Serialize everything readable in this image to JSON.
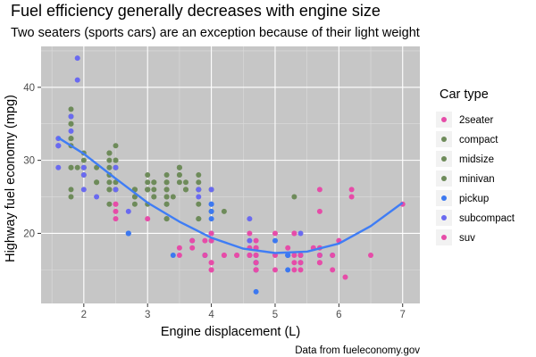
{
  "chart_data": {
    "type": "scatter",
    "title": "Fuel efficiency generally decreases with engine size",
    "subtitle": "Two seaters (sports cars) are an exception because of their light weight",
    "xlabel": "Engine displacement (L)",
    "ylabel": "Highway fuel economy (mpg)",
    "caption": "Data from fueleconomy.gov",
    "xlim": [
      1.33,
      7.27
    ],
    "ylim": [
      10.4,
      45.6
    ],
    "xticks": [
      2,
      3,
      4,
      5,
      6,
      7
    ],
    "yticks": [
      20,
      30,
      40
    ],
    "grid": true,
    "legend": {
      "title": "Car type",
      "position": "right"
    },
    "series": [
      {
        "name": "2seater",
        "color": "#E64CA8",
        "points": [
          [
            5.7,
            26
          ],
          [
            5.7,
            23
          ],
          [
            6.2,
            26
          ],
          [
            6.2,
            25
          ],
          [
            7.0,
            24
          ]
        ]
      },
      {
        "name": "compact",
        "color": "#6E8B5A",
        "points": [
          [
            1.8,
            29
          ],
          [
            1.8,
            29
          ],
          [
            2.0,
            31
          ],
          [
            2.0,
            30
          ],
          [
            2.8,
            26
          ],
          [
            2.8,
            26
          ],
          [
            3.1,
            27
          ],
          [
            1.8,
            26
          ],
          [
            1.8,
            25
          ],
          [
            2.0,
            28
          ],
          [
            2.0,
            29
          ],
          [
            2.8,
            25
          ],
          [
            3.1,
            25
          ],
          [
            2.2,
            27
          ],
          [
            2.2,
            29
          ],
          [
            2.4,
            31
          ],
          [
            2.4,
            31
          ],
          [
            3.0,
            26
          ],
          [
            3.0,
            26
          ],
          [
            3.3,
            27
          ],
          [
            1.8,
            33
          ],
          [
            1.8,
            37
          ],
          [
            1.8,
            35
          ],
          [
            1.9,
            29
          ],
          [
            2.0,
            29
          ],
          [
            2.5,
            32
          ],
          [
            2.5,
            27
          ],
          [
            2.5,
            26
          ],
          [
            2.5,
            30
          ],
          [
            2.8,
            26
          ],
          [
            2.8,
            24
          ],
          [
            3.3,
            25
          ],
          [
            2.4,
            27
          ],
          [
            2.4,
            26
          ],
          [
            1.8,
            36
          ],
          [
            1.8,
            35
          ],
          [
            2.4,
            28
          ],
          [
            2.4,
            28
          ]
        ]
      },
      {
        "name": "midsize",
        "color": "#6E8B5A",
        "points": [
          [
            2.8,
            25
          ],
          [
            3.1,
            25
          ],
          [
            4.2,
            23
          ],
          [
            3.8,
            26
          ],
          [
            3.8,
            26
          ],
          [
            3.1,
            27
          ],
          [
            3.5,
            29
          ],
          [
            3.5,
            28
          ],
          [
            3.0,
            26
          ],
          [
            3.0,
            26
          ],
          [
            2.4,
            26
          ],
          [
            2.4,
            31
          ],
          [
            3.1,
            26
          ],
          [
            3.5,
            29
          ],
          [
            3.6,
            27
          ],
          [
            3.6,
            26
          ],
          [
            3.3,
            26
          ],
          [
            3.3,
            25
          ],
          [
            3.4,
            25
          ],
          [
            3.6,
            26
          ],
          [
            2.5,
            29
          ],
          [
            2.5,
            26
          ],
          [
            3.0,
            26
          ],
          [
            3.3,
            27
          ],
          [
            3.3,
            26
          ],
          [
            3.8,
            27
          ],
          [
            3.8,
            28
          ],
          [
            3.5,
            27
          ],
          [
            3.5,
            28
          ],
          [
            2.4,
            29
          ],
          [
            2.4,
            30
          ],
          [
            3.3,
            28
          ],
          [
            2.2,
            27
          ],
          [
            2.5,
            29
          ],
          [
            2.5,
            30
          ],
          [
            3.0,
            28
          ],
          [
            3.0,
            27
          ],
          [
            3.5,
            29
          ],
          [
            1.8,
            33
          ],
          [
            1.8,
            32
          ],
          [
            2.8,
            26
          ],
          [
            4.0,
            26
          ],
          [
            5.3,
            25
          ]
        ]
      },
      {
        "name": "minivan",
        "color": "#6E8B5A",
        "points": [
          [
            2.4,
            24
          ],
          [
            3.0,
            24
          ],
          [
            3.3,
            22
          ],
          [
            3.3,
            22
          ],
          [
            3.3,
            24
          ],
          [
            3.8,
            24
          ],
          [
            3.8,
            22
          ],
          [
            4.0,
            23
          ],
          [
            3.3,
            24
          ],
          [
            3.8,
            22
          ]
        ]
      },
      {
        "name": "pickup",
        "color": "#3C78F0",
        "points": [
          [
            2.7,
            20
          ],
          [
            2.7,
            20
          ],
          [
            3.9,
            17
          ],
          [
            3.9,
            17
          ],
          [
            4.7,
            15
          ],
          [
            4.7,
            17
          ],
          [
            5.2,
            15
          ],
          [
            5.2,
            17
          ],
          [
            5.7,
            17
          ],
          [
            5.9,
            17
          ],
          [
            4.7,
            16
          ],
          [
            4.7,
            12
          ],
          [
            5.2,
            17
          ],
          [
            3.7,
            19
          ],
          [
            4.7,
            16
          ],
          [
            5.4,
            17
          ],
          [
            4.0,
            19
          ],
          [
            4.0,
            20
          ],
          [
            4.6,
            17
          ],
          [
            5.4,
            16
          ],
          [
            5.4,
            17
          ],
          [
            2.7,
            20
          ],
          [
            3.4,
            17
          ],
          [
            4.0,
            22
          ],
          [
            4.0,
            24
          ],
          [
            4.0,
            23
          ],
          [
            4.0,
            24
          ],
          [
            4.7,
            16
          ],
          [
            4.7,
            15
          ],
          [
            5.0,
            19
          ],
          [
            5.2,
            17
          ],
          [
            5.7,
            17
          ]
        ]
      },
      {
        "name": "subcompact",
        "color": "#6A6AF0",
        "points": [
          [
            1.6,
            32
          ],
          [
            1.6,
            33
          ],
          [
            1.6,
            32
          ],
          [
            1.6,
            29
          ],
          [
            1.6,
            32
          ],
          [
            1.8,
            34
          ],
          [
            1.8,
            36
          ],
          [
            1.9,
            44
          ],
          [
            1.9,
            41
          ],
          [
            2.0,
            29
          ],
          [
            2.0,
            26
          ],
          [
            2.0,
            28
          ],
          [
            2.5,
            29
          ],
          [
            2.5,
            26
          ],
          [
            3.8,
            26
          ],
          [
            3.8,
            25
          ],
          [
            4.6,
            22
          ],
          [
            5.4,
            20
          ],
          [
            4.0,
            26
          ],
          [
            4.6,
            19
          ],
          [
            2.2,
            25
          ],
          [
            2.7,
            23
          ]
        ]
      },
      {
        "name": "suv",
        "color": "#E64CA8",
        "points": [
          [
            5.3,
            20
          ],
          [
            5.3,
            15
          ],
          [
            5.3,
            20
          ],
          [
            5.7,
            17
          ],
          [
            6.5,
            17
          ],
          [
            4.7,
            17
          ],
          [
            4.7,
            19
          ],
          [
            4.7,
            18
          ],
          [
            5.2,
            18
          ],
          [
            3.7,
            19
          ],
          [
            4.7,
            18
          ],
          [
            4.7,
            18
          ],
          [
            5.7,
            16
          ],
          [
            4.7,
            17
          ],
          [
            4.2,
            17
          ],
          [
            4.4,
            17
          ],
          [
            4.6,
            18
          ],
          [
            5.4,
            17
          ],
          [
            4.0,
            19
          ],
          [
            4.6,
            20
          ],
          [
            5.0,
            17
          ],
          [
            6.1,
            14
          ],
          [
            4.0,
            16
          ],
          [
            4.2,
            17
          ],
          [
            4.6,
            17
          ],
          [
            5.0,
            15
          ],
          [
            4.0,
            15
          ],
          [
            4.6,
            17
          ],
          [
            3.9,
            19
          ],
          [
            3.5,
            17
          ],
          [
            3.5,
            18
          ],
          [
            4.0,
            20
          ],
          [
            5.0,
            20
          ],
          [
            5.3,
            16
          ],
          [
            5.9,
            17
          ],
          [
            5.9,
            15
          ],
          [
            6.0,
            19
          ],
          [
            3.0,
            22
          ],
          [
            2.5,
            24
          ],
          [
            2.5,
            23
          ],
          [
            4.0,
            15
          ],
          [
            3.7,
            18
          ],
          [
            5.7,
            18
          ],
          [
            4.7,
            15
          ],
          [
            5.4,
            15
          ],
          [
            4.7,
            16
          ],
          [
            5.3,
            17
          ],
          [
            5.7,
            16
          ],
          [
            2.5,
            22
          ],
          [
            2.5,
            24
          ],
          [
            4.0,
            16
          ],
          [
            4.7,
            15
          ],
          [
            3.9,
            17
          ],
          [
            4.4,
            17
          ],
          [
            5.4,
            16
          ],
          [
            5.6,
            18
          ]
        ]
      }
    ],
    "smooth": {
      "color": "#3F7DF5",
      "points": [
        [
          1.6,
          33.1
        ],
        [
          2.0,
          30.9
        ],
        [
          2.5,
          27.5
        ],
        [
          3.0,
          24.2
        ],
        [
          3.5,
          21.6
        ],
        [
          4.0,
          19.4
        ],
        [
          4.5,
          17.9
        ],
        [
          5.0,
          17.3
        ],
        [
          5.5,
          17.5
        ],
        [
          6.0,
          18.6
        ],
        [
          6.5,
          21.0
        ],
        [
          7.0,
          24.2
        ]
      ]
    }
  }
}
